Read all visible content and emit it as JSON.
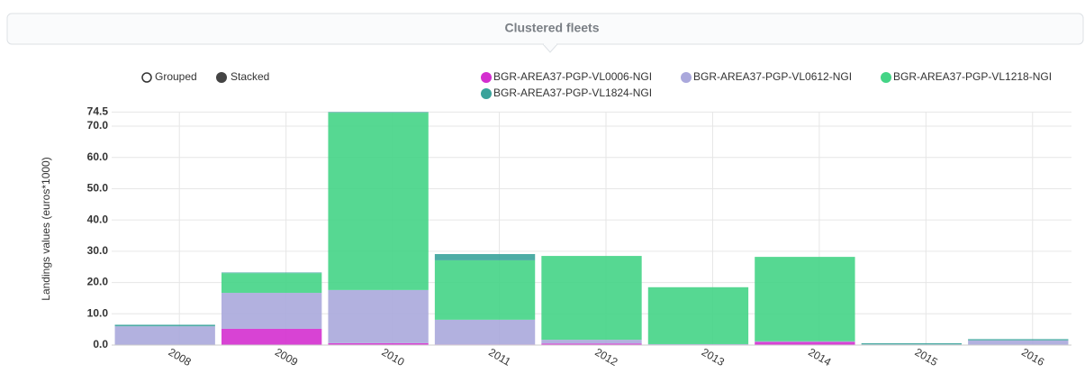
{
  "chart_data": {
    "type": "stacked_bar",
    "title": "Clustered fleets",
    "toggle_options": [
      "Grouped",
      "Stacked"
    ],
    "y_label": "Landings values (euros*1000)",
    "categories": [
      "2008",
      "2009",
      "2010",
      "2011",
      "2012",
      "2013",
      "2014",
      "2015",
      "2016"
    ],
    "series": [
      {
        "name": "BGR-AREA37-PGP-VL0006-NGI",
        "color": "#d42fcf",
        "values": [
          0.1,
          5.2,
          0.6,
          0.2,
          0.5,
          0,
          1.0,
          0,
          0
        ]
      },
      {
        "name": "BGR-AREA37-PGP-VL0612-NGI",
        "color": "#aaa8dc",
        "values": [
          5.9,
          11.5,
          17.0,
          7.9,
          1.2,
          0.3,
          0.2,
          0.2,
          1.5
        ]
      },
      {
        "name": "BGR-AREA37-PGP-VL1218-NGI",
        "color": "#44d486",
        "values": [
          0,
          6.3,
          56.7,
          19.0,
          26.8,
          18.2,
          27.0,
          0,
          0
        ]
      },
      {
        "name": "BGR-AREA37-PGP-VL1824-NGI",
        "color": "#3aa39b",
        "values": [
          0.5,
          0.2,
          0.2,
          2.0,
          0,
          0,
          0,
          0.4,
          0.4
        ]
      }
    ],
    "ylim": [
      0,
      74.5
    ],
    "yticks": [
      {
        "value": 0,
        "label": "0.0"
      },
      {
        "value": 10,
        "label": "10.0"
      },
      {
        "value": 20,
        "label": "20.0"
      },
      {
        "value": 30,
        "label": "30.0"
      },
      {
        "value": 40,
        "label": "40.0"
      },
      {
        "value": 50,
        "label": "50.0"
      },
      {
        "value": 60,
        "label": "60.0"
      },
      {
        "value": 70,
        "label": "70.0"
      },
      74.5
    ],
    "grid": true
  }
}
